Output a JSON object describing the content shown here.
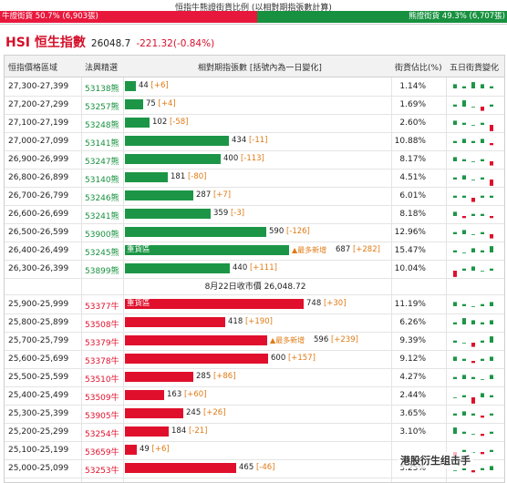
{
  "top": {
    "title": "恒指牛熊證街貨比例 (以相對期指張數計算)",
    "bull_label": "牛證街貨 50.7% (6,903張)",
    "bear_label": "熊證街貨 49.3% (6,707張)",
    "bull_pct": 50.7,
    "bear_pct": 49.3
  },
  "index": {
    "name": "HSI 恒生指數",
    "value": "26048.7",
    "change": "-221.32(-0.84%)"
  },
  "headers": {
    "range": "恒指價格區域",
    "stock": "法興精選",
    "contracts": "相對期指張數 [括號內為一日變化]",
    "pct": "街貨佔比(%)",
    "five_day": "五日街貨變化"
  },
  "mid_label": "8月22日收市價 26,048.72",
  "heavy_label": "重貨區",
  "most_added_label": "▲最多新增",
  "max_contracts": 748,
  "bear_rows": [
    {
      "range": "27,300-27,399",
      "stock": "53138熊",
      "contracts": "44",
      "chg": "[+6]",
      "value": 44,
      "pct": "1.14%",
      "spark": [
        2,
        1,
        3,
        2,
        1
      ]
    },
    {
      "range": "27,200-27,299",
      "stock": "53257熊",
      "contracts": "75",
      "chg": "[+4]",
      "value": 75,
      "pct": "1.69%",
      "spark": [
        1,
        3,
        0,
        -2,
        1
      ]
    },
    {
      "range": "27,100-27,199",
      "stock": "53248熊",
      "contracts": "102",
      "chg": "[-58]",
      "value": 102,
      "pct": "2.60%",
      "spark": [
        2,
        1,
        0,
        1,
        -3
      ]
    },
    {
      "range": "27,000-27,099",
      "stock": "53141熊",
      "contracts": "434",
      "chg": "[-11]",
      "value": 434,
      "pct": "10.88%",
      "spark": [
        1,
        2,
        1,
        2,
        -1
      ]
    },
    {
      "range": "26,900-26,999",
      "stock": "53247熊",
      "contracts": "400",
      "chg": "[-113]",
      "value": 400,
      "pct": "8.17%",
      "spark": [
        2,
        1,
        0,
        1,
        -2
      ]
    },
    {
      "range": "26,800-26,899",
      "stock": "53140熊",
      "contracts": "181",
      "chg": "[-80]",
      "value": 181,
      "pct": "4.51%",
      "spark": [
        1,
        2,
        0,
        1,
        -3
      ]
    },
    {
      "range": "26,700-26,799",
      "stock": "53246熊",
      "contracts": "287",
      "chg": "[+7]",
      "value": 287,
      "pct": "6.01%",
      "spark": [
        1,
        1,
        -2,
        1,
        1
      ]
    },
    {
      "range": "26,600-26,699",
      "stock": "53241熊",
      "contracts": "359",
      "chg": "[-3]",
      "value": 359,
      "pct": "8.18%",
      "spark": [
        2,
        -1,
        1,
        1,
        -1
      ]
    },
    {
      "range": "26,500-26,599",
      "stock": "53900熊",
      "contracts": "590",
      "chg": "[-126]",
      "value": 590,
      "pct": "12.96%",
      "spark": [
        1,
        2,
        0,
        1,
        -2
      ]
    },
    {
      "range": "26,400-26,499",
      "stock": "53245熊",
      "contracts": "687",
      "chg": "[+282]",
      "value": 687,
      "pct": "15.47%",
      "spark": [
        1,
        0,
        2,
        1,
        3
      ],
      "heavy": true,
      "most": true
    },
    {
      "range": "26,300-26,399",
      "stock": "53899熊",
      "contracts": "440",
      "chg": "[+111]",
      "value": 440,
      "pct": "10.04%",
      "spark": [
        -3,
        1,
        2,
        0,
        1
      ]
    }
  ],
  "bull_rows": [
    {
      "range": "25,900-25,999",
      "stock": "53377牛",
      "contracts": "748",
      "chg": "[+30]",
      "value": 748,
      "pct": "11.19%",
      "spark": [
        2,
        1,
        0,
        1,
        2
      ],
      "heavy": true
    },
    {
      "range": "25,800-25,899",
      "stock": "53508牛",
      "contracts": "418",
      "chg": "[+190]",
      "value": 418,
      "pct": "6.26%",
      "spark": [
        1,
        3,
        2,
        1,
        2
      ]
    },
    {
      "range": "25,700-25,799",
      "stock": "53379牛",
      "contracts": "596",
      "chg": "[+239]",
      "value": 596,
      "pct": "9.39%",
      "spark": [
        1,
        0,
        -2,
        1,
        3
      ],
      "most": true
    },
    {
      "range": "25,600-25,699",
      "stock": "53378牛",
      "contracts": "600",
      "chg": "[+157]",
      "value": 600,
      "pct": "9.12%",
      "spark": [
        2,
        1,
        -1,
        1,
        2
      ]
    },
    {
      "range": "25,500-25,599",
      "stock": "53510牛",
      "contracts": "285",
      "chg": "[+86]",
      "value": 285,
      "pct": "4.27%",
      "spark": [
        1,
        2,
        1,
        0,
        2
      ]
    },
    {
      "range": "25,400-25,499",
      "stock": "53509牛",
      "contracts": "163",
      "chg": "[+60]",
      "value": 163,
      "pct": "2.44%",
      "spark": [
        0,
        1,
        -3,
        2,
        1
      ]
    },
    {
      "range": "25,300-25,399",
      "stock": "53905牛",
      "contracts": "245",
      "chg": "[+26]",
      "value": 245,
      "pct": "3.65%",
      "spark": [
        1,
        2,
        1,
        -1,
        1
      ]
    },
    {
      "range": "25,200-25,299",
      "stock": "53254牛",
      "contracts": "184",
      "chg": "[-21]",
      "value": 184,
      "pct": "3.10%",
      "spark": [
        3,
        1,
        0,
        -1,
        1
      ]
    },
    {
      "range": "25,100-25,199",
      "stock": "53659牛",
      "contracts": "49",
      "chg": "[+6]",
      "value": 49,
      "pct": "",
      "spark": [
        -2,
        1,
        0,
        -1,
        1
      ]
    },
    {
      "range": "25,000-25,099",
      "stock": "53253牛",
      "contracts": "465",
      "chg": "[-46]",
      "value": 465,
      "pct": "5.25%",
      "spark": [
        0,
        1,
        -1,
        1,
        2
      ]
    }
  ],
  "watermark": "港股衍生组击手",
  "colors": {
    "bull": "#e0102c",
    "bear": "#1c9646",
    "change": "#e07a14"
  }
}
